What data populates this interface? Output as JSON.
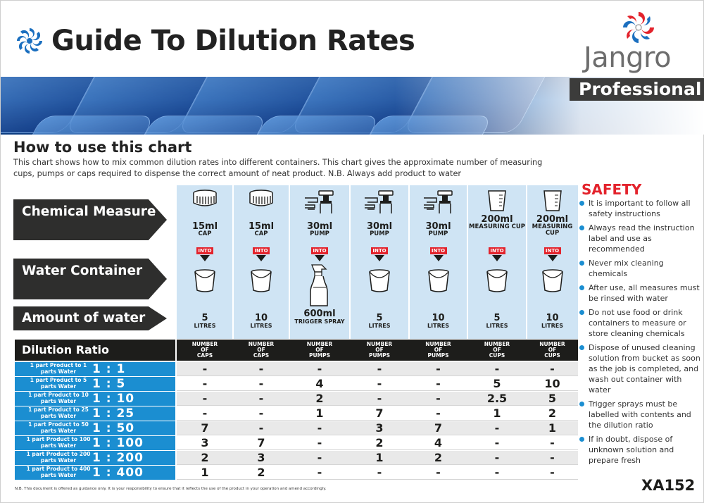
{
  "header": {
    "title": "Guide To Dilution Rates",
    "brand": "Jangro",
    "badge": "Professional"
  },
  "howto": {
    "title": "How to use this chart",
    "text": "This chart shows how to mix common dilution rates into different containers. This chart gives the approximate number of measuring cups, pumps or caps required to dispense the correct amount of neat product.  N.B. Always add product to water"
  },
  "row_labels": {
    "chemical": "Chemical Measure",
    "water": "Water Container",
    "amount": "Amount of water"
  },
  "columns": [
    {
      "measure_top": "15ml",
      "measure_bot": "CAP",
      "into": "INTO",
      "measure_icon": "cap-icon",
      "container_icon": "bucket-icon",
      "water_top": "5",
      "water_bot": "LITRES",
      "header": "NUMBER OF CAPS"
    },
    {
      "measure_top": "15ml",
      "measure_bot": "CAP",
      "into": "INTO",
      "measure_icon": "cap-icon",
      "container_icon": "bucket-icon",
      "water_top": "10",
      "water_bot": "LITRES",
      "header": "NUMBER OF CAPS"
    },
    {
      "measure_top": "30ml",
      "measure_bot": "PUMP",
      "into": "INTO",
      "measure_icon": "pump-icon",
      "container_icon": "trigger-spray-icon",
      "water_top": "600ml",
      "water_bot": "TRIGGER SPRAY",
      "header": "NUMBER OF PUMPS"
    },
    {
      "measure_top": "30ml",
      "measure_bot": "PUMP",
      "into": "INTO",
      "measure_icon": "pump-icon",
      "container_icon": "bucket-icon",
      "water_top": "5",
      "water_bot": "LITRES",
      "header": "NUMBER OF PUMPS"
    },
    {
      "measure_top": "30ml",
      "measure_bot": "PUMP",
      "into": "INTO",
      "measure_icon": "pump-icon",
      "container_icon": "bucket-icon",
      "water_top": "10",
      "water_bot": "LITRES",
      "header": "NUMBER OF PUMPS"
    },
    {
      "measure_top": "200ml",
      "measure_bot": "MEASURING CUP",
      "into": "INTO",
      "measure_icon": "measuring-cup-icon",
      "container_icon": "bucket-icon",
      "water_top": "5",
      "water_bot": "LITRES",
      "header": "NUMBER OF CUPS"
    },
    {
      "measure_top": "200ml",
      "measure_bot": "MEASURING CUP",
      "into": "INTO",
      "measure_icon": "measuring-cup-icon",
      "container_icon": "bucket-icon",
      "water_top": "10",
      "water_bot": "LITRES",
      "header": "NUMBER OF CUPS"
    }
  ],
  "table": {
    "header_label": "Dilution Ratio",
    "rows": [
      {
        "small": "1 part Product to 1 parts Water",
        "ratio": "1 : 1",
        "cells": [
          "-",
          "-",
          "-",
          "-",
          "-",
          "-",
          "-"
        ]
      },
      {
        "small": "1 part Product to 5 parts Water",
        "ratio": "1 : 5",
        "cells": [
          "-",
          "-",
          "4",
          "-",
          "-",
          "5",
          "10"
        ]
      },
      {
        "small": "1 part Product to 10 parts Water",
        "ratio": "1 : 10",
        "cells": [
          "-",
          "-",
          "2",
          "-",
          "-",
          "2.5",
          "5"
        ]
      },
      {
        "small": "1 part Product to 25 parts Water",
        "ratio": "1 : 25",
        "cells": [
          "-",
          "-",
          "1",
          "7",
          "-",
          "1",
          "2"
        ]
      },
      {
        "small": "1 part Product to 50 parts Water",
        "ratio": "1 : 50",
        "cells": [
          "7",
          "-",
          "-",
          "3",
          "7",
          "-",
          "1"
        ]
      },
      {
        "small": "1 part Product to 100 parts Water",
        "ratio": "1 : 100",
        "cells": [
          "3",
          "7",
          "-",
          "2",
          "4",
          "-",
          "-"
        ]
      },
      {
        "small": "1 part Product to 200 parts Water",
        "ratio": "1 : 200",
        "cells": [
          "2",
          "3",
          "-",
          "1",
          "2",
          "-",
          "-"
        ]
      },
      {
        "small": "1 part Product to 400 parts Water",
        "ratio": "1 : 400",
        "cells": [
          "1",
          "2",
          "-",
          "-",
          "-",
          "-",
          "-"
        ]
      }
    ]
  },
  "safety": {
    "title": "SAFETY",
    "items": [
      "It is important to follow all safety instructions",
      "Always read the instruction label and use as recommended",
      "Never mix cleaning chemicals",
      "After use, all measures must be rinsed with water",
      "Do not use food or drink containers to measure or store cleaning chemicals",
      "Dispose of unused cleaning solution from bucket as soon as the job is completed, and wash out container with water",
      "Trigger sprays must be labelled with contents and the dilution ratio",
      "If in doubt, dispose of unknown solution and prepare fresh"
    ]
  },
  "footer": {
    "note": "N.B. This document is offered as guidance only.  It is your responsibility to ensure that it reflects the use of the product in your operation and amend accordingly.",
    "code": "XA152"
  },
  "colors": {
    "accent_blue": "#1b8ed1",
    "light_blue": "#cfe4f4",
    "dark": "#1d1d1b",
    "red": "#e3232c",
    "badge_grey": "#3c3c3b"
  }
}
